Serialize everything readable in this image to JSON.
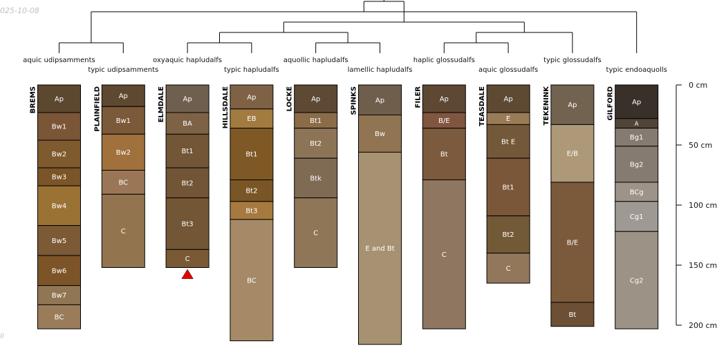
{
  "meta": {
    "date_stamp": "025-10-08",
    "footer_mark": "ll"
  },
  "depth_axis": {
    "unit": "cm",
    "ticks": [
      0,
      50,
      100,
      150,
      200
    ]
  },
  "profiles": [
    {
      "id": "BREMS",
      "classification": "aquic udipsamments",
      "label_row": 0,
      "depth": 203,
      "horizons": [
        {
          "name": "Ap",
          "top": 0,
          "bottom": 23,
          "color": "#5c472f"
        },
        {
          "name": "Bw1",
          "top": 23,
          "bottom": 46,
          "color": "#7a5536"
        },
        {
          "name": "Bw2",
          "top": 46,
          "bottom": 69,
          "color": "#7f5a2f"
        },
        {
          "name": "Bw3",
          "top": 69,
          "bottom": 84,
          "color": "#7b5428"
        },
        {
          "name": "Bw4",
          "top": 84,
          "bottom": 117,
          "color": "#9a7334"
        },
        {
          "name": "Bw5",
          "top": 117,
          "bottom": 142,
          "color": "#7b5a35"
        },
        {
          "name": "Bw6",
          "top": 142,
          "bottom": 167,
          "color": "#7c5428"
        },
        {
          "name": "Bw7",
          "top": 167,
          "bottom": 183,
          "color": "#917653"
        },
        {
          "name": "BC",
          "top": 183,
          "bottom": 203,
          "color": "#9b7c5a"
        }
      ]
    },
    {
      "id": "PLAINFIELD",
      "classification": "typic udipsamments",
      "label_row": 1,
      "depth": 152,
      "horizons": [
        {
          "name": "Ap",
          "top": 0,
          "bottom": 18,
          "color": "#5e482f"
        },
        {
          "name": "Bw1",
          "top": 18,
          "bottom": 41,
          "color": "#7a5a38"
        },
        {
          "name": "Bw2",
          "top": 41,
          "bottom": 71,
          "color": "#a0703d"
        },
        {
          "name": "BC",
          "top": 71,
          "bottom": 91,
          "color": "#9a7656"
        },
        {
          "name": "C",
          "top": 91,
          "bottom": 152,
          "color": "#92744f"
        }
      ]
    },
    {
      "id": "ELMDALE",
      "classification": "oxyaquic hapludalfs",
      "label_row": 0,
      "depth": 152,
      "water_table": true,
      "horizons": [
        {
          "name": "Ap",
          "top": 0,
          "bottom": 23,
          "color": "#6f5f4e"
        },
        {
          "name": "BA",
          "top": 23,
          "bottom": 41,
          "color": "#7e6245"
        },
        {
          "name": "Bt1",
          "top": 41,
          "bottom": 69,
          "color": "#725636"
        },
        {
          "name": "Bt2",
          "top": 69,
          "bottom": 94,
          "color": "#725536"
        },
        {
          "name": "Bt3",
          "top": 94,
          "bottom": 137,
          "color": "#735636"
        },
        {
          "name": "C",
          "top": 137,
          "bottom": 152,
          "color": "#7a5a34"
        }
      ]
    },
    {
      "id": "HILLSDALE",
      "classification": "typic hapludalfs",
      "label_row": 1,
      "depth": 213,
      "horizons": [
        {
          "name": "Ap",
          "top": 0,
          "bottom": 20,
          "color": "#7f6246"
        },
        {
          "name": "EB",
          "top": 20,
          "bottom": 36,
          "color": "#a27b41"
        },
        {
          "name": "Bt1",
          "top": 36,
          "bottom": 79,
          "color": "#7f5925"
        },
        {
          "name": "Bt2",
          "top": 79,
          "bottom": 97,
          "color": "#7a5626"
        },
        {
          "name": "Bt3",
          "top": 97,
          "bottom": 112,
          "color": "#a6793f"
        },
        {
          "name": "BC",
          "top": 112,
          "bottom": 213,
          "color": "#a68a67"
        }
      ]
    },
    {
      "id": "LOCKE",
      "classification": "aquollic hapludalfs",
      "label_row": 0,
      "depth": 152,
      "horizons": [
        {
          "name": "Ap",
          "top": 0,
          "bottom": 23,
          "color": "#5d4934"
        },
        {
          "name": "Bt1",
          "top": 23,
          "bottom": 36,
          "color": "#8b6c49"
        },
        {
          "name": "Bt2",
          "top": 36,
          "bottom": 61,
          "color": "#8d7457"
        },
        {
          "name": "Btk",
          "top": 61,
          "bottom": 94,
          "color": "#7f6a54"
        },
        {
          "name": "C",
          "top": 94,
          "bottom": 152,
          "color": "#8e7657"
        }
      ]
    },
    {
      "id": "SPINKS",
      "classification": "lamellic hapludalfs",
      "label_row": 1,
      "depth": 216,
      "horizons": [
        {
          "name": "Ap",
          "top": 0,
          "bottom": 25,
          "color": "#6f5e4c"
        },
        {
          "name": "Bw",
          "top": 25,
          "bottom": 56,
          "color": "#917451"
        },
        {
          "name": "E and Bt",
          "top": 56,
          "bottom": 216,
          "color": "#a69273"
        }
      ]
    },
    {
      "id": "FILER",
      "classification": "haplic glossudalfs",
      "label_row": 0,
      "depth": 203,
      "horizons": [
        {
          "name": "Ap",
          "top": 0,
          "bottom": 23,
          "color": "#5e4834"
        },
        {
          "name": "B/E",
          "top": 23,
          "bottom": 36,
          "color": "#815640"
        },
        {
          "name": "Bt",
          "top": 36,
          "bottom": 79,
          "color": "#7c5a3d"
        },
        {
          "name": "C",
          "top": 79,
          "bottom": 203,
          "color": "#8f7660"
        }
      ]
    },
    {
      "id": "TEASDALE",
      "classification": "aquic glossudalfs",
      "label_row": 1,
      "depth": 165,
      "horizons": [
        {
          "name": "Ap",
          "top": 0,
          "bottom": 23,
          "color": "#5e4a33"
        },
        {
          "name": "E",
          "top": 23,
          "bottom": 33,
          "color": "#997b56"
        },
        {
          "name": "Bt E",
          "top": 33,
          "bottom": 61,
          "color": "#735939"
        },
        {
          "name": "Bt1",
          "top": 61,
          "bottom": 109,
          "color": "#7b5739"
        },
        {
          "name": "Bt2",
          "top": 109,
          "bottom": 140,
          "color": "#735a37"
        },
        {
          "name": "C",
          "top": 140,
          "bottom": 165,
          "color": "#92775a"
        }
      ]
    },
    {
      "id": "TEKENINK",
      "classification": "typic glossudalfs",
      "label_row": 0,
      "depth": 201,
      "horizons": [
        {
          "name": "Ap",
          "top": 0,
          "bottom": 33,
          "color": "#726350"
        },
        {
          "name": "E/B",
          "top": 33,
          "bottom": 81,
          "color": "#ad9878"
        },
        {
          "name": "B/E",
          "top": 81,
          "bottom": 181,
          "color": "#7b5a3b"
        },
        {
          "name": "Bt",
          "top": 181,
          "bottom": 201,
          "color": "#6c4f35"
        }
      ]
    },
    {
      "id": "GILFORD",
      "classification": "typic endoaquolls",
      "label_row": 1,
      "depth": 203,
      "horizons": [
        {
          "name": "Ap",
          "top": 0,
          "bottom": 28,
          "color": "#393029"
        },
        {
          "name": "A",
          "top": 28,
          "bottom": 36,
          "color": "#514538"
        },
        {
          "name": "Bg1",
          "top": 36,
          "bottom": 51,
          "color": "#857b71"
        },
        {
          "name": "Bg2",
          "top": 51,
          "bottom": 81,
          "color": "#857b71"
        },
        {
          "name": "BCg",
          "top": 81,
          "bottom": 97,
          "color": "#9d9389"
        },
        {
          "name": "Cg1",
          "top": 97,
          "bottom": 122,
          "color": "#9f9993"
        },
        {
          "name": "Cg2",
          "top": 122,
          "bottom": 203,
          "color": "#9c9285"
        }
      ]
    }
  ],
  "dendrogram": {
    "leaf_order": [
      "BREMS",
      "PLAINFIELD",
      "ELMDALE",
      "HILLSDALE",
      "LOCKE",
      "SPINKS",
      "FILER",
      "TEASDALE",
      "TEKENINK",
      "GILFORD"
    ],
    "merges": [
      {
        "a": "BREMS",
        "b": "PLAINFIELD",
        "height": 1
      },
      {
        "a": "ELMDALE",
        "b": "HILLSDALE",
        "height": 1
      },
      {
        "a": "LOCKE",
        "b": "SPINKS",
        "height": 1
      },
      {
        "a": "FILER",
        "b": "TEASDALE",
        "height": 1
      },
      {
        "a": "ELMDALE+HILLSDALE",
        "b": "LOCKE+SPINKS",
        "height": 2
      },
      {
        "a": "FILER+TEASDALE",
        "b": "TEKENINK",
        "height": 2
      },
      {
        "a": "ELMDALE+HILLSDALE+LOCKE+SPINKS",
        "b": "FILER+TEASDALE+TEKENINK",
        "height": 3
      },
      {
        "a": "BREMS+PLAINFIELD",
        "b": "GILFORD",
        "height": 4
      },
      {
        "a": "BREMS+PLAINFIELD+GILFORD",
        "b": "ELMDALE+HILLSDALE+LOCKE+SPINKS+FILER+TEASDALE+TEKENINK",
        "height": 5
      }
    ]
  },
  "colors": {
    "line": "#000000",
    "label_light": "#ffffff",
    "label_dark": "#222222",
    "water_table": "#e60000"
  }
}
